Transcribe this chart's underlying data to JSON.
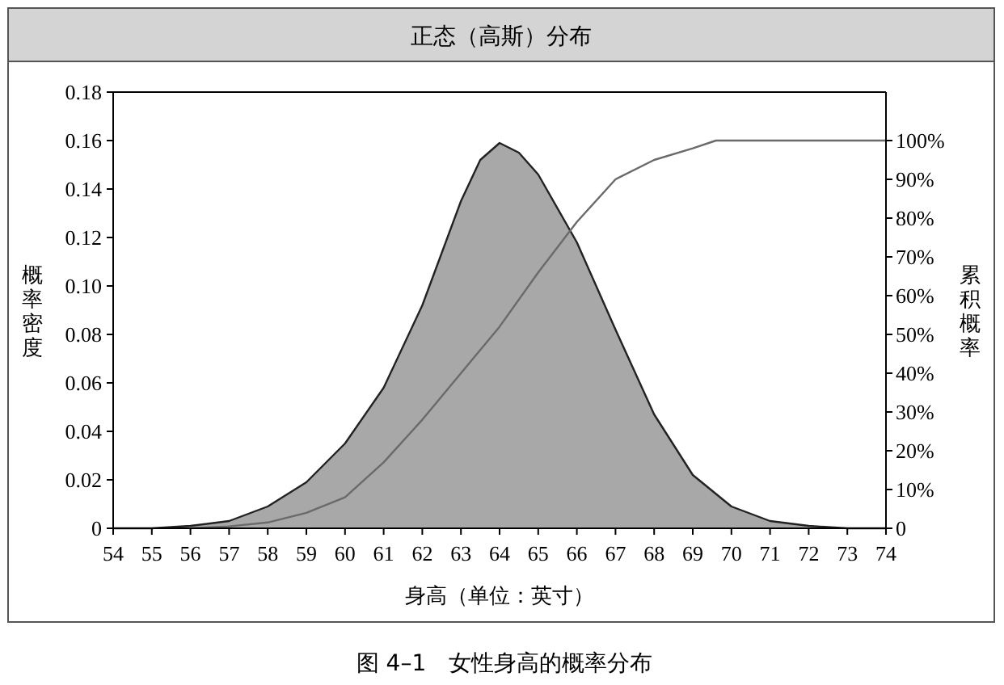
{
  "chart_data": {
    "type": "area",
    "title": "正态（高斯）分布",
    "xlabel": "身高（单位：英寸）",
    "ylabel": "概率密度",
    "y2label": "累积概率",
    "annotations": [
      "图 4–1　女性身高的概率分布"
    ],
    "series": [
      {
        "color": "#a8a8a8",
        "x": [
          54,
          55,
          56,
          57,
          58,
          59,
          60,
          61,
          62,
          63,
          63.5,
          64,
          64.5,
          65,
          66,
          67,
          68,
          69,
          70,
          71,
          72,
          73,
          74
        ],
        "values": [
          0,
          0,
          0.001,
          0.003,
          0.009,
          0.019,
          0.035,
          0.058,
          0.092,
          0.135,
          0.152,
          0.159,
          0.155,
          0.146,
          0.118,
          0.082,
          0.047,
          0.022,
          0.009,
          0.003,
          0.001,
          0,
          0
        ]
      },
      {
        "type": "line",
        "axis": "y2",
        "color": "#6a6a6a",
        "x": [
          56,
          57,
          58,
          59,
          60,
          61,
          62,
          63,
          64,
          65,
          66,
          67,
          68,
          69,
          69.6,
          74
        ],
        "values": [
          0,
          0.5,
          1.5,
          4,
          8,
          17,
          28,
          40,
          52,
          66,
          79,
          90,
          95,
          98,
          100,
          100
        ]
      }
    ],
    "xlim": [
      54,
      74
    ],
    "xticks": [
      54,
      55,
      56,
      57,
      58,
      59,
      60,
      61,
      62,
      63,
      64,
      65,
      66,
      67,
      68,
      69,
      70,
      71,
      72,
      73,
      74
    ],
    "ylim": [
      0,
      0.18
    ],
    "yticks": [
      0,
      {
        "value": 0.02,
        "label": "0.02"
      },
      {
        "value": 0.04,
        "label": "0.04"
      },
      {
        "value": 0.06,
        "label": "0.06"
      },
      {
        "value": 0.08,
        "label": "0.08"
      },
      {
        "value": 0.1,
        "label": "0.10"
      },
      {
        "value": 0.12,
        "label": "0.12"
      },
      {
        "value": 0.14,
        "label": "0.14"
      },
      {
        "value": 0.16,
        "label": "0.16"
      },
      {
        "value": 0.18,
        "label": "0.18"
      }
    ],
    "y2lim": [
      0,
      112.5
    ],
    "y2ticks": [
      0,
      {
        "value": 10,
        "label": "10%"
      },
      {
        "value": 20,
        "label": "20%"
      },
      {
        "value": 30,
        "label": "30%"
      },
      {
        "value": 40,
        "label": "40%"
      },
      {
        "value": 50,
        "label": "50%"
      },
      {
        "value": 60,
        "label": "60%"
      },
      {
        "value": 70,
        "label": "70%"
      },
      {
        "value": 80,
        "label": "80%"
      },
      {
        "value": 90,
        "label": "90%"
      },
      {
        "value": 100,
        "label": "100%"
      }
    ],
    "grid": false
  }
}
